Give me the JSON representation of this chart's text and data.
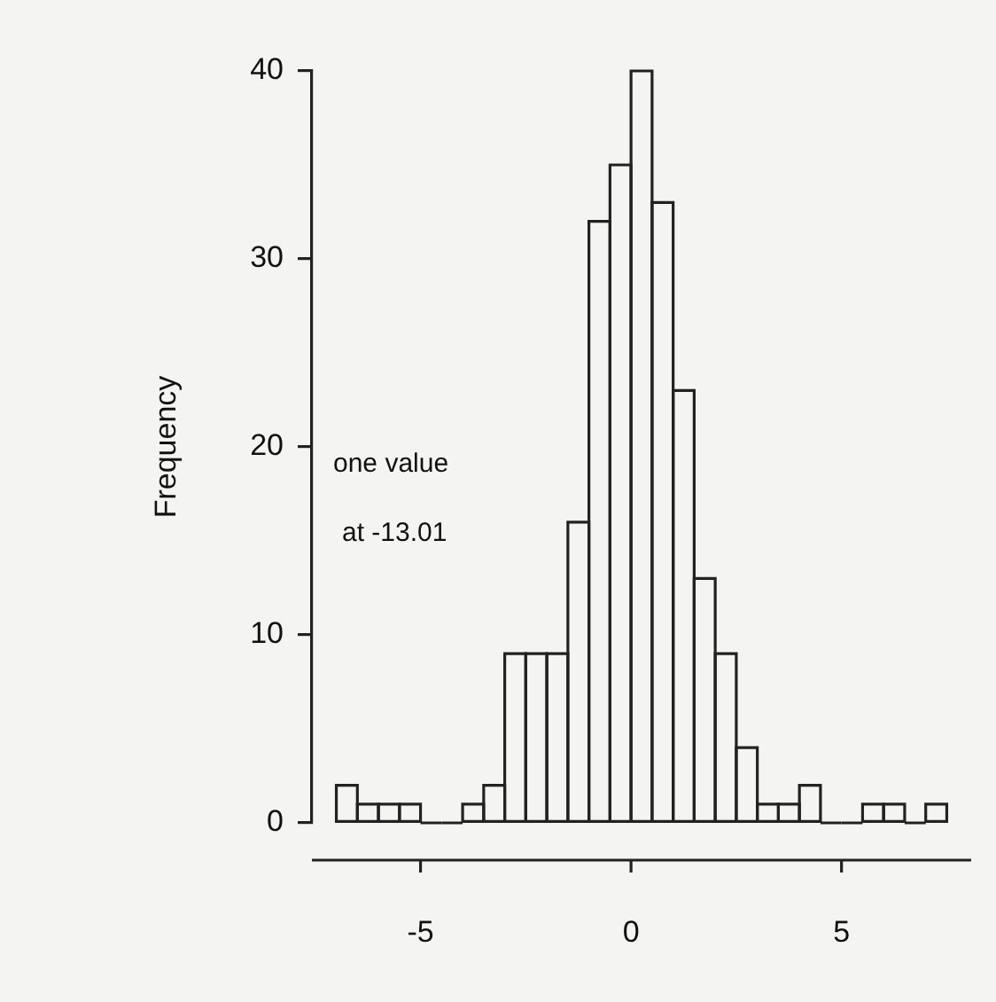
{
  "chart_data": {
    "type": "histogram",
    "ylabel": "Frequency",
    "bins": [
      -7,
      -6.5,
      -6,
      -5.5,
      -5,
      -4.5,
      -4,
      -3.5,
      -3,
      -2.5,
      -2,
      -1.5,
      -1,
      -0.5,
      0,
      0.5,
      1,
      1.5,
      2,
      2.5,
      3,
      3.5,
      4,
      4.5,
      5,
      5.5,
      6,
      6.5,
      7,
      7.5
    ],
    "values": [
      2,
      1,
      1,
      1,
      0,
      0,
      1,
      2,
      9,
      9,
      9,
      16,
      32,
      35,
      40,
      33,
      23,
      13,
      9,
      4,
      1,
      1,
      2,
      0,
      0,
      1,
      1,
      0,
      1
    ],
    "color": "#222222",
    "xlim": [
      -7.58,
      8.08
    ],
    "xticks": [
      -5,
      0,
      5
    ],
    "ylim": [
      0,
      40
    ],
    "yticks": [
      0,
      10,
      20,
      30,
      40
    ],
    "grid": false,
    "legend": false,
    "annotations": [
      "one value\nat -13.01"
    ]
  }
}
